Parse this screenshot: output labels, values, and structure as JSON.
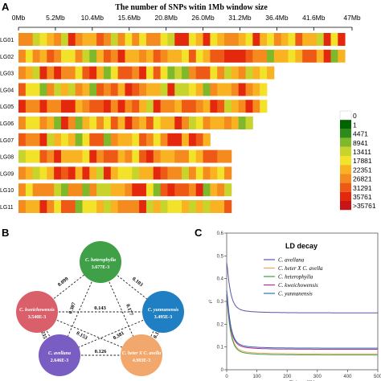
{
  "panels": {
    "a": "A",
    "b": "B",
    "c": "C"
  },
  "panel_a": {
    "title": "The number of SNPs witin 1Mb window size",
    "x_ticks": [
      "0Mb",
      "5.2Mb",
      "10.4Mb",
      "15.6Mb",
      "20.8Mb",
      "26.0Mb",
      "31.2Mb",
      "36.4Mb",
      "41.6Mb",
      "47Mb"
    ],
    "chromosomes": [
      {
        "name": "LG01",
        "length_mb": 46
      },
      {
        "name": "LG02",
        "length_mb": 46
      },
      {
        "name": "LG03",
        "length_mb": 36
      },
      {
        "name": "LG04",
        "length_mb": 35
      },
      {
        "name": "LG05",
        "length_mb": 35
      },
      {
        "name": "LG06",
        "length_mb": 33
      },
      {
        "name": "LG07",
        "length_mb": 27
      },
      {
        "name": "LG08",
        "length_mb": 30
      },
      {
        "name": "LG09",
        "length_mb": 30
      },
      {
        "name": "LG10",
        "length_mb": 30
      },
      {
        "name": "LG11",
        "length_mb": 30
      }
    ],
    "legend": {
      "labels": [
        "0",
        "1",
        "4471",
        "8941",
        "13411",
        "17881",
        "22351",
        "26821",
        "31291",
        "35761",
        ">35761"
      ],
      "colors": [
        "#ffffff",
        "#006400",
        "#2e8b1a",
        "#7fb82a",
        "#c8d42c",
        "#f2e22a",
        "#f9b322",
        "#f58a1e",
        "#ee5a16",
        "#e3280e",
        "#c81414"
      ]
    }
  },
  "panel_b": {
    "nodes": [
      {
        "id": "heterophylla",
        "name": "C. heterophylla",
        "value": "3.677E-3",
        "color": "#3fa047"
      },
      {
        "id": "yunnanensis",
        "name": "C. yunnanensis",
        "value": "3.495E-3",
        "color": "#1f7fc2"
      },
      {
        "id": "hybrid",
        "name": "C. heter X C. avella",
        "value": "4.983E-3",
        "color": "#f2a76c"
      },
      {
        "id": "avellana",
        "name": "C. avellana",
        "value": "2.646E-3",
        "color": "#7a5dc2"
      },
      {
        "id": "kweichowensis",
        "name": "C. kweichowensis",
        "value": "3.540E-3",
        "color": "#d9606a"
      }
    ],
    "edges": [
      {
        "a": "kweichowensis",
        "b": "heterophylla",
        "value": "0.099"
      },
      {
        "a": "heterophylla",
        "b": "yunnanensis",
        "value": "0.103"
      },
      {
        "a": "kweichowensis",
        "b": "yunnanensis",
        "value": "0.143"
      },
      {
        "a": "heterophylla",
        "b": "avellana",
        "value": "0.307"
      },
      {
        "a": "heterophylla",
        "b": "hybrid",
        "value": "0.177"
      },
      {
        "a": "kweichowensis",
        "b": "hybrid",
        "value": "0.153"
      },
      {
        "a": "yunnanensis",
        "b": "avellana",
        "value": "0.381"
      },
      {
        "a": "kweichowensis",
        "b": "avellana",
        "value": "0.235"
      },
      {
        "a": "yunnanensis",
        "b": "hybrid",
        "value": "0.152"
      },
      {
        "a": "avellana",
        "b": "hybrid",
        "value": "0.126"
      }
    ]
  },
  "chart_data": {
    "type": "line",
    "title": "LD decay",
    "xlabel": "Distance(Kb)",
    "ylabel": "r²",
    "xlim": [
      0,
      500
    ],
    "ylim": [
      0,
      0.6
    ],
    "x_ticks": [
      0,
      100,
      200,
      300,
      400,
      500
    ],
    "y_ticks": [
      0,
      0.1,
      0.2,
      0.3,
      0.4,
      0.5,
      0.6
    ],
    "legend_position": "top-right",
    "series": [
      {
        "name": "C. avellana",
        "color": "#5b55a8",
        "peak": 0.47,
        "plateau": 0.25
      },
      {
        "name": "C. heter X C. avella",
        "color": "#f3a55a",
        "peak": 0.34,
        "plateau": 0.07
      },
      {
        "name": "C. heterophylla",
        "color": "#3aa04a",
        "peak": 0.32,
        "plateau": 0.065
      },
      {
        "name": "C. kweichowensis",
        "color": "#c02a8c",
        "peak": 0.33,
        "plateau": 0.09
      },
      {
        "name": "C. yunnanensis",
        "color": "#2a6fb6",
        "peak": 0.35,
        "plateau": 0.095
      }
    ]
  }
}
